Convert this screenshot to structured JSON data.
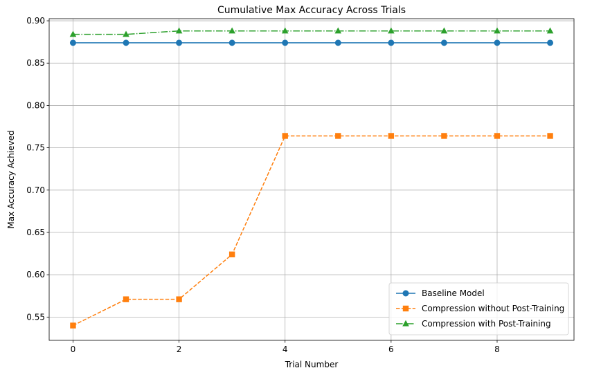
{
  "chart_data": {
    "type": "line",
    "title": "Cumulative Max Accuracy Across Trials",
    "xlabel": "Trial Number",
    "ylabel": "Max Accuracy Achieved",
    "x": [
      0,
      1,
      2,
      3,
      4,
      5,
      6,
      7,
      8,
      9
    ],
    "xlim": [
      -0.45,
      9.45
    ],
    "ylim": [
      0.5225,
      0.9025
    ],
    "xticks": [
      0,
      2,
      4,
      6,
      8
    ],
    "yticks": [
      0.55,
      0.6,
      0.65,
      0.7,
      0.75,
      0.8,
      0.85,
      0.9
    ],
    "grid": true,
    "legend_position": "lower-right",
    "series": [
      {
        "name": "Baseline Model",
        "values": [
          0.874,
          0.874,
          0.874,
          0.874,
          0.874,
          0.874,
          0.874,
          0.874,
          0.874,
          0.874
        ],
        "color": "#1f77b4",
        "linestyle": "solid",
        "marker": "circle"
      },
      {
        "name": "Compression without Post-Training",
        "values": [
          0.54,
          0.571,
          0.571,
          0.624,
          0.764,
          0.764,
          0.764,
          0.764,
          0.764,
          0.764
        ],
        "color": "#ff7f0e",
        "linestyle": "dashed",
        "marker": "square"
      },
      {
        "name": "Compression with Post-Training",
        "values": [
          0.884,
          0.884,
          0.888,
          0.888,
          0.888,
          0.888,
          0.888,
          0.888,
          0.888,
          0.888
        ],
        "color": "#2ca02c",
        "linestyle": "dashdot",
        "marker": "triangle"
      }
    ]
  }
}
